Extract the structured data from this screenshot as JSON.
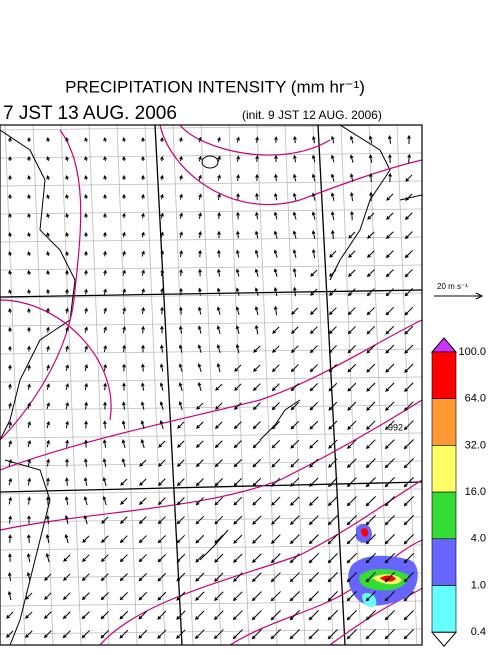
{
  "header": {
    "title": "PRECIPITATION INTENSITY (mm hr⁻¹)",
    "valid_time": "7 JST 13 AUG. 2006",
    "init_time": "(init. 9 JST 12 AUG. 2006)"
  },
  "map": {
    "contour_label": "992"
  },
  "wind_scale": {
    "label": "20 m s⁻¹"
  },
  "colorbar": {
    "labels": [
      "100.0",
      "64.0",
      "32.0",
      "16.0",
      "4.0",
      "1.0",
      "0.4"
    ],
    "colors": [
      "#ff0000",
      "#ff9933",
      "#ffff66",
      "#33dd33",
      "#6666ff",
      "#66ffff"
    ],
    "over_color": "#cc33ff",
    "under_color": "#ffffff"
  }
}
